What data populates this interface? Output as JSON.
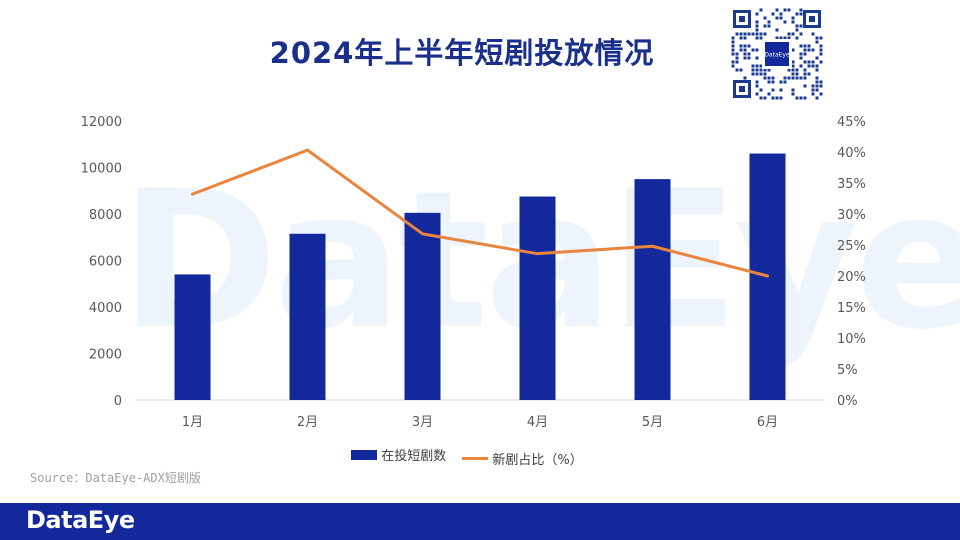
{
  "header": {
    "title": "2024年上半年短剧投放情况"
  },
  "qr": {
    "label": "DataEye"
  },
  "watermark": "DataEye",
  "chart_data": {
    "type": "bar+line",
    "categories": [
      "1月",
      "2月",
      "3月",
      "4月",
      "5月",
      "6月"
    ],
    "series": [
      {
        "name": "在投短剧数",
        "type": "bar",
        "axis": "left",
        "values": [
          5400,
          7150,
          8050,
          8750,
          9500,
          10600
        ]
      },
      {
        "name": "新剧占比（%）",
        "type": "line",
        "axis": "right",
        "values": [
          33.2,
          40.3,
          26.8,
          23.6,
          24.8,
          20.0
        ]
      }
    ],
    "y_left": {
      "ticks": [
        "12000",
        "10000",
        "8000",
        "6000",
        "4000",
        "2000",
        "0"
      ],
      "lim": [
        0,
        12000
      ]
    },
    "y_right": {
      "ticks": [
        "45%",
        "40%",
        "35%",
        "30%",
        "25%",
        "20%",
        "15%",
        "10%",
        "5%",
        "0%"
      ],
      "lim": [
        0,
        45
      ]
    },
    "colors": {
      "bar": "#13289a",
      "line": "#e8853f",
      "axis": "#d9d9d9",
      "text": "#595959"
    }
  },
  "legend": {
    "bar_label": "在投短剧数",
    "line_label": "新剧占比（%）"
  },
  "source": "Source：DataEye-ADX短剧版",
  "footer": {
    "logo": "DataEye"
  }
}
